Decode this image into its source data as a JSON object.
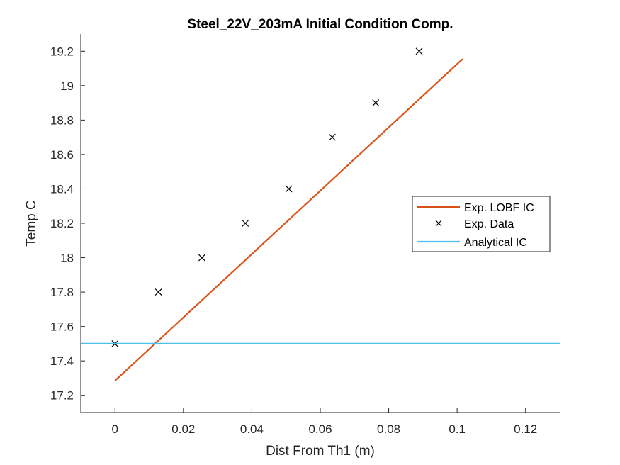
{
  "chart_data": {
    "type": "line",
    "title": "Steel_22V_203mA Initial Condition Comp.",
    "xlabel": "Dist From Th1 (m)",
    "ylabel": "Temp C",
    "xlim": [
      -0.01,
      0.13
    ],
    "ylim": [
      17.1,
      19.3
    ],
    "xticks": [
      0,
      0.02,
      0.04,
      0.06,
      0.08,
      0.1,
      0.12
    ],
    "xtick_labels": [
      "0",
      "0.02",
      "0.04",
      "0.06",
      "0.08",
      "0.1",
      "0.12"
    ],
    "yticks": [
      17.2,
      17.4,
      17.6,
      17.8,
      18,
      18.2,
      18.4,
      18.6,
      18.8,
      19,
      19.2
    ],
    "ytick_labels": [
      "17.2",
      "17.4",
      "17.6",
      "17.8",
      "18",
      "18.2",
      "18.4",
      "18.6",
      "18.8",
      "19",
      "19.2"
    ],
    "grid": false,
    "legend_position": "right",
    "series": [
      {
        "name": "Exp. LOBF IC",
        "style": "line",
        "color": "#D95319",
        "x": [
          0,
          0.1016
        ],
        "y": [
          17.285,
          19.155
        ]
      },
      {
        "name": "Exp. Data",
        "style": "marker-x",
        "color": "#000000",
        "x": [
          0,
          0.0127,
          0.0254,
          0.0381,
          0.0508,
          0.0635,
          0.0762,
          0.0889
        ],
        "y": [
          17.5,
          17.8,
          18.0,
          18.2,
          18.4,
          18.7,
          18.9,
          19.2
        ]
      },
      {
        "name": "Analytical IC",
        "style": "line",
        "color": "#4DBEEE",
        "x": [
          -0.01,
          0.13
        ],
        "y": [
          17.5,
          17.5
        ]
      }
    ]
  }
}
